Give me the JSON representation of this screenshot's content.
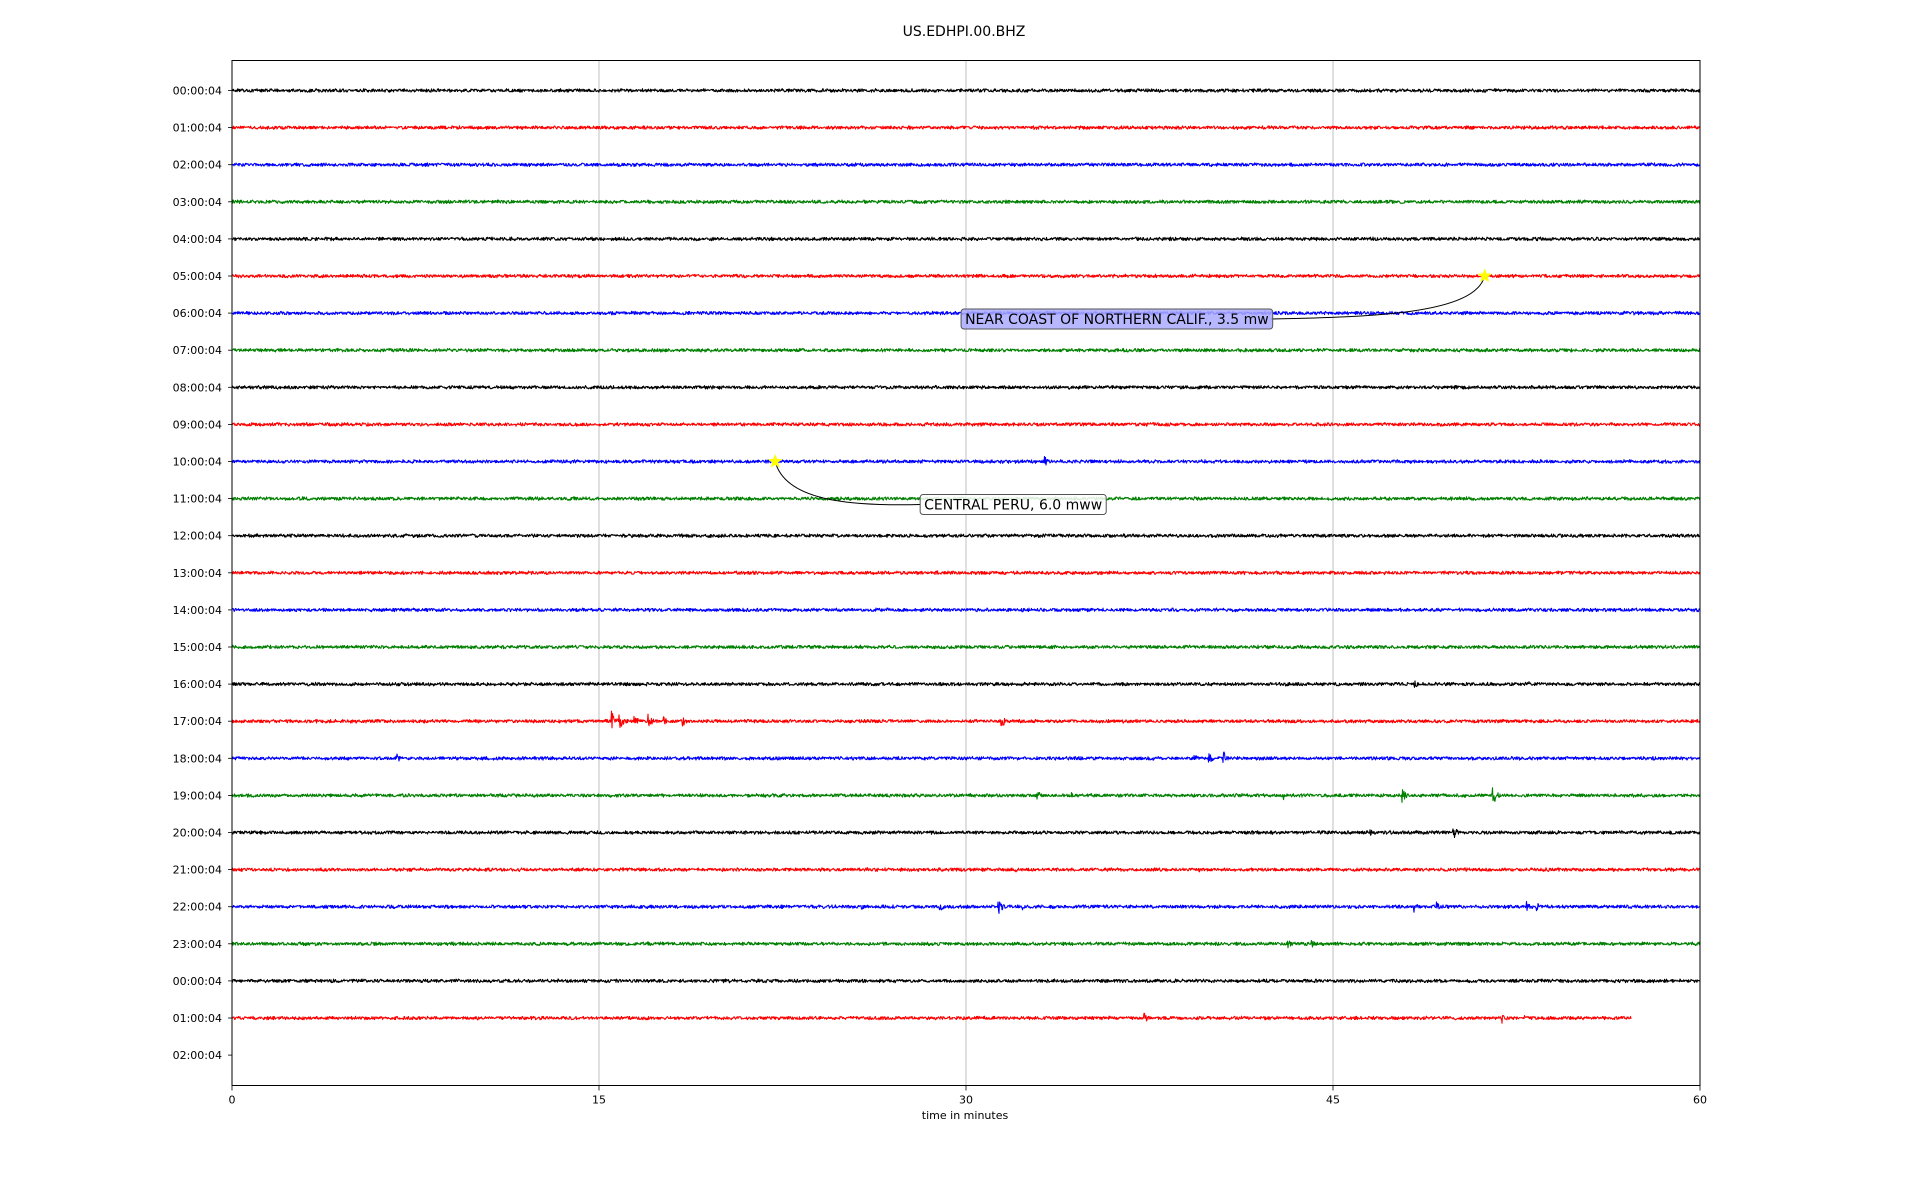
{
  "chart_data": {
    "type": "line",
    "title": "US.EDHPI.00.BHZ",
    "xlabel": "time in minutes",
    "ylabel": "",
    "xlim": [
      0,
      60
    ],
    "x_ticks": [
      0,
      15,
      30,
      45,
      60
    ],
    "x_tick_labels": [
      "0",
      "15",
      "30",
      "45",
      "60"
    ],
    "grid": "vertical lines at x ticks",
    "y_tick_labels": [
      "00:00:04",
      "01:00:04",
      "02:00:04",
      "03:00:04",
      "04:00:04",
      "05:00:04",
      "06:00:04",
      "07:00:04",
      "08:00:04",
      "09:00:04",
      "10:00:04",
      "11:00:04",
      "12:00:04",
      "13:00:04",
      "14:00:04",
      "15:00:04",
      "16:00:04",
      "17:00:04",
      "18:00:04",
      "19:00:04",
      "20:00:04",
      "21:00:04",
      "22:00:04",
      "23:00:04",
      "00:00:04",
      "01:00:04",
      "02:00:04"
    ],
    "line_colors": [
      "#000000",
      "#ff0000",
      "#0000ff",
      "#008000"
    ],
    "trace_count": 26,
    "last_trace_end_minute": 57.2,
    "noise_amplitude": 0.15,
    "bursts": [
      {
        "row": 10,
        "minute": 33.2,
        "amp": 0.6
      },
      {
        "row": 12,
        "minute": 41.5,
        "amp": 0.3
      },
      {
        "row": 16,
        "minute": 48.3,
        "amp": 0.5
      },
      {
        "row": 16,
        "minute": 53.0,
        "amp": 0.4
      },
      {
        "row": 17,
        "minute": 3.4,
        "amp": 0.4
      },
      {
        "row": 17,
        "minute": 15.5,
        "amp": 1.4
      },
      {
        "row": 17,
        "minute": 15.8,
        "amp": 1.1
      },
      {
        "row": 17,
        "minute": 16.4,
        "amp": 0.9
      },
      {
        "row": 17,
        "minute": 17.0,
        "amp": 0.8
      },
      {
        "row": 17,
        "minute": 17.6,
        "amp": 0.6
      },
      {
        "row": 17,
        "minute": 18.4,
        "amp": 0.7
      },
      {
        "row": 17,
        "minute": 31.4,
        "amp": 0.9
      },
      {
        "row": 18,
        "minute": 6.7,
        "amp": 0.6
      },
      {
        "row": 18,
        "minute": 39.3,
        "amp": 0.6
      },
      {
        "row": 18,
        "minute": 39.9,
        "amp": 0.7
      },
      {
        "row": 18,
        "minute": 40.5,
        "amp": 0.9
      },
      {
        "row": 19,
        "minute": 32.9,
        "amp": 0.6
      },
      {
        "row": 19,
        "minute": 34.3,
        "amp": 0.3
      },
      {
        "row": 19,
        "minute": 42.9,
        "amp": 0.7
      },
      {
        "row": 19,
        "minute": 47.8,
        "amp": 0.8
      },
      {
        "row": 19,
        "minute": 51.5,
        "amp": 1.2
      },
      {
        "row": 20,
        "minute": 46.5,
        "amp": 0.4
      },
      {
        "row": 20,
        "minute": 49.9,
        "amp": 0.8
      },
      {
        "row": 21,
        "minute": 32.0,
        "amp": 0.3
      },
      {
        "row": 21,
        "minute": 39.5,
        "amp": 0.3
      },
      {
        "row": 22,
        "minute": 25.7,
        "amp": 0.5
      },
      {
        "row": 22,
        "minute": 28.9,
        "amp": 0.6
      },
      {
        "row": 22,
        "minute": 31.3,
        "amp": 0.9
      },
      {
        "row": 22,
        "minute": 32.2,
        "amp": 0.6
      },
      {
        "row": 22,
        "minute": 48.3,
        "amp": 0.6
      },
      {
        "row": 22,
        "minute": 49.2,
        "amp": 0.6
      },
      {
        "row": 22,
        "minute": 52.9,
        "amp": 0.8
      },
      {
        "row": 22,
        "minute": 53.3,
        "amp": 0.6
      },
      {
        "row": 23,
        "minute": 43.1,
        "amp": 0.6
      },
      {
        "row": 23,
        "minute": 44.1,
        "amp": 0.5
      },
      {
        "row": 25,
        "minute": 37.2,
        "amp": 0.9
      },
      {
        "row": 25,
        "minute": 51.9,
        "amp": 0.6
      },
      {
        "row": 25,
        "minute": 52.8,
        "amp": 0.3
      }
    ],
    "events": [
      {
        "label": "NEAR COAST OF NORTHERN CALIF., 3.5 mw",
        "row": 5,
        "minute": 51.2,
        "box_color": "#aaaaff"
      },
      {
        "label": "CENTRAL PERU, 6.0 mww",
        "row": 10,
        "minute": 22.2,
        "box_color": "#ffffff"
      }
    ]
  }
}
